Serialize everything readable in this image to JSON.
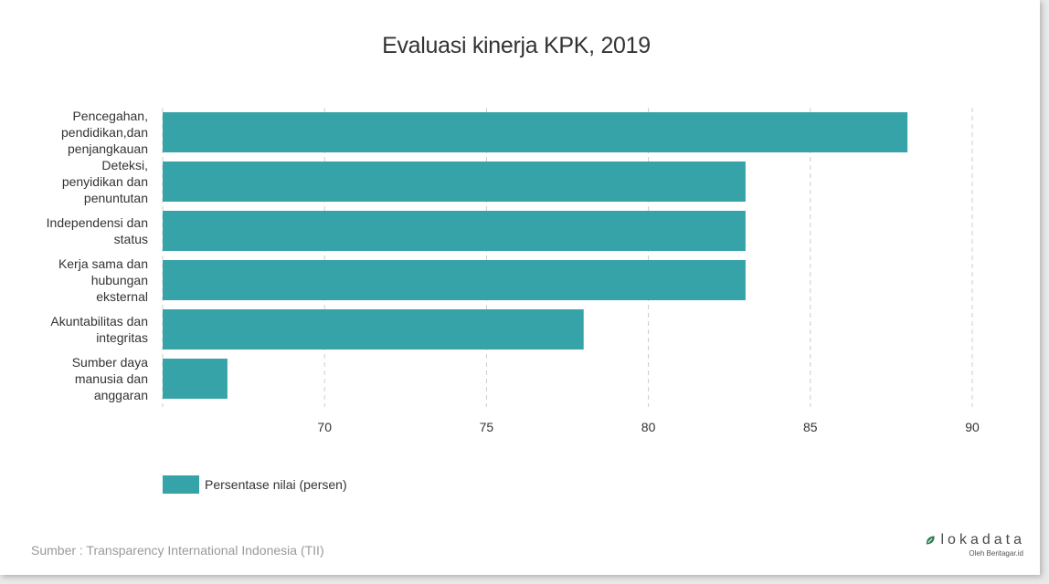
{
  "chart_data": {
    "type": "bar",
    "orientation": "horizontal",
    "title": "Evaluasi kinerja KPK, 2019",
    "categories": [
      [
        "Pencegahan,",
        "pendidikan,dan",
        "penjangkauan"
      ],
      [
        "Deteksi,",
        "penyidikan dan",
        "penuntutan"
      ],
      [
        "Independensi dan",
        "status"
      ],
      [
        "Kerja sama dan",
        "hubungan",
        "eksternal"
      ],
      [
        "Akuntabilitas dan",
        "integritas"
      ],
      [
        "Sumber daya",
        "manusia dan",
        "anggaran"
      ]
    ],
    "series": [
      {
        "name": "Persentase nilai (persen)",
        "values": [
          88,
          83,
          83,
          83,
          78,
          67
        ]
      }
    ],
    "xlim": [
      65,
      90
    ],
    "x_ticks": [
      70,
      75,
      80,
      85,
      90
    ],
    "grid": true,
    "legend_position": "bottom-left",
    "bar_color": "#36a3a8",
    "grid_color": "#cccccc"
  },
  "source": "Sumber : Transparency International Indonesia (TII)",
  "brand": {
    "name": "lokadata",
    "sub": "Oleh Beritagar.id",
    "icon": "leaf-icon",
    "color": "#2e7d4f"
  }
}
